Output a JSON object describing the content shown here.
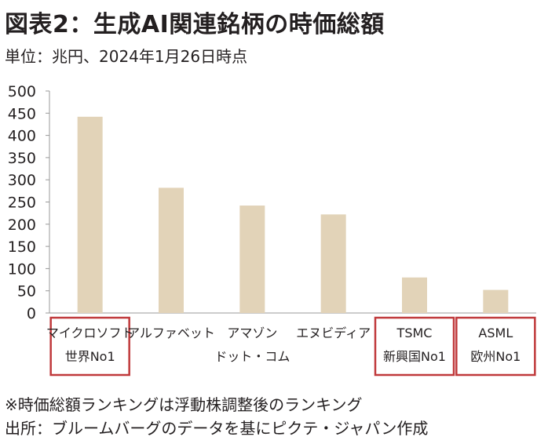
{
  "title": "図表2：生成AI関連銘柄の時価総額",
  "subtitle": "単位：兆円、2024年1月26日時点",
  "colors": {
    "bar": "#e2d3b8",
    "highlight_box": "#c0393b",
    "axis": "#999999",
    "text": "#231f20"
  },
  "chart_data": {
    "type": "bar",
    "categories": [
      [
        "マイクロソフト",
        "世界No1"
      ],
      [
        "アルファベット"
      ],
      [
        "アマゾン",
        "ドット・コム"
      ],
      [
        "エヌビディア"
      ],
      [
        "TSMC",
        "新興国No1"
      ],
      [
        "ASML",
        "欧州No1"
      ]
    ],
    "highlighted": [
      true,
      false,
      false,
      false,
      true,
      true
    ],
    "values": [
      442,
      282,
      242,
      222,
      80,
      52
    ],
    "ylim": [
      0,
      500
    ],
    "yticks": [
      "0",
      "50",
      "100",
      "150",
      "200",
      "250",
      "300",
      "350",
      "400",
      "450",
      "500"
    ],
    "grid": false
  },
  "notes": [
    "※時価総額ランキングは浮動株調整後のランキング",
    "出所：ブルームバーグのデータを基にピクテ・ジャパン作成"
  ]
}
